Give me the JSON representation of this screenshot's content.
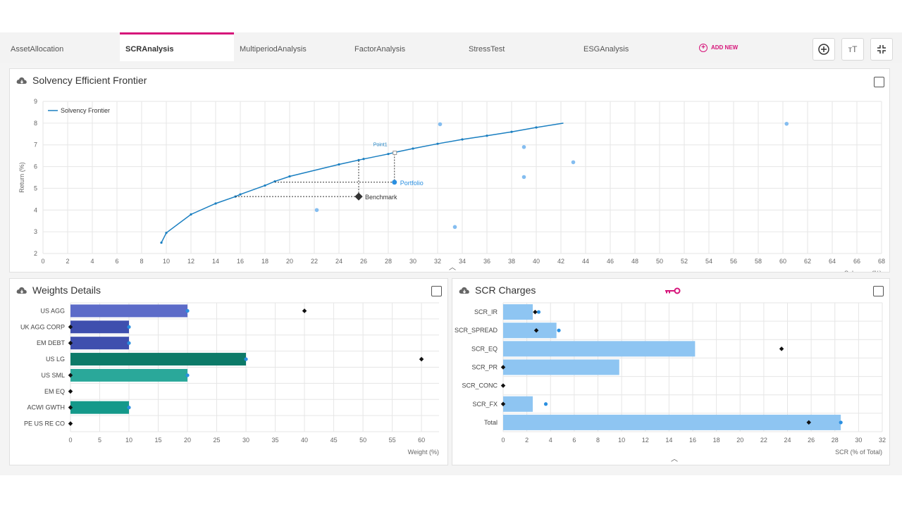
{
  "tabs": [
    {
      "label": "AssetAllocation",
      "active": false
    },
    {
      "label": "SCRAnalysis",
      "active": true
    },
    {
      "label": "MultiperiodAnalysis",
      "active": false
    },
    {
      "label": "FactorAnalysis",
      "active": false
    },
    {
      "label": "StressTest",
      "active": false
    },
    {
      "label": "ESGAnalysis",
      "active": false
    }
  ],
  "add_new": {
    "label": "ADD NEW"
  },
  "toolbar": {
    "icons": [
      "add-circle-icon",
      "text-size-icon",
      "collapse-icon"
    ],
    "text_size_glyph": "тТ"
  },
  "colors": {
    "accent": "#d6157a",
    "frontier": "#1a7fc1",
    "point": "#2a8fe0",
    "scr_bar": "#8ec5f2"
  },
  "frontier_panel": {
    "title": "Solvency Efficient Frontier",
    "legend": "Solvency Frontier",
    "portfolio_label": "Portfolio",
    "benchmark_label": "Benchmark",
    "point_label": "Point1"
  },
  "weights_panel": {
    "title": "Weights Details"
  },
  "scr_panel": {
    "title": "SCR Charges"
  },
  "chart_data": [
    {
      "type": "line",
      "title": "Solvency Efficient Frontier",
      "xlabel": "Solvency (%)",
      "ylabel": "Return (%)",
      "xlim": [
        0,
        68
      ],
      "ylim": [
        2,
        9
      ],
      "xticks": [
        0,
        2,
        4,
        6,
        8,
        10,
        12,
        14,
        16,
        18,
        20,
        22,
        24,
        26,
        28,
        30,
        32,
        34,
        36,
        38,
        40,
        42,
        44,
        46,
        48,
        50,
        52,
        54,
        56,
        58,
        60,
        62,
        64,
        66,
        68
      ],
      "yticks": [
        2,
        3,
        4,
        5,
        6,
        7,
        8,
        9
      ],
      "grid": true,
      "legend_position": "top-left",
      "series": [
        {
          "name": "Solvency Frontier",
          "x": [
            9.6,
            10,
            12,
            14,
            15.6,
            16,
            18,
            18.8,
            20,
            24,
            25.6,
            26,
            28,
            28.5,
            30,
            32,
            34,
            36,
            38,
            40,
            42.2
          ],
          "y": [
            2.5,
            2.95,
            3.8,
            4.3,
            4.62,
            4.72,
            5.13,
            5.32,
            5.55,
            6.1,
            6.3,
            6.35,
            6.58,
            6.65,
            6.83,
            7.05,
            7.25,
            7.42,
            7.6,
            7.8,
            8.0
          ]
        }
      ],
      "scatter": [
        {
          "x": 22.2,
          "y": 4.0
        },
        {
          "x": 32.2,
          "y": 7.95
        },
        {
          "x": 33.4,
          "y": 3.22
        },
        {
          "x": 39,
          "y": 6.9
        },
        {
          "x": 39,
          "y": 5.52
        },
        {
          "x": 43,
          "y": 6.2
        },
        {
          "x": 60.3,
          "y": 7.97
        }
      ],
      "portfolio": {
        "x": 28.5,
        "y": 5.28
      },
      "benchmark": {
        "x": 25.6,
        "y": 4.62
      },
      "point1": {
        "x": 28.5,
        "y": 6.65
      }
    },
    {
      "type": "bar",
      "title": "Weights Details",
      "xlabel": "Weight (%)",
      "xlim": [
        0,
        63
      ],
      "xticks": [
        0,
        5,
        10,
        15,
        20,
        25,
        30,
        35,
        40,
        45,
        50,
        55,
        60
      ],
      "categories": [
        "US AGG",
        "UK AGG CORP",
        "EM DEBT",
        "US LG",
        "US SML",
        "EM EQ",
        "ACWI GWTH",
        "PE US RE CO"
      ],
      "values": [
        20,
        10,
        10,
        30,
        20,
        0,
        10,
        0
      ],
      "benchmark": [
        40,
        0,
        0,
        60,
        0,
        0,
        0,
        0
      ],
      "bar_colors": [
        "#5c6bc8",
        "#3f4fae",
        "#3f4fae",
        "#0d7a68",
        "#2aa89a",
        "#2aa89a",
        "#14998a",
        "#14998a"
      ]
    },
    {
      "type": "bar",
      "title": "SCR Charges",
      "xlabel": "SCR (% of Total)",
      "xlim": [
        0,
        32
      ],
      "xticks": [
        0,
        2,
        4,
        6,
        8,
        10,
        12,
        14,
        16,
        18,
        20,
        22,
        24,
        26,
        28,
        30,
        32
      ],
      "categories": [
        "SCR_IR",
        "SCR_SPREAD",
        "SCR_EQ",
        "SCR_PR",
        "SCR_CONC",
        "SCR_FX",
        "Total"
      ],
      "values": [
        2.5,
        4.5,
        16.2,
        9.8,
        0,
        2.5,
        28.5
      ],
      "portfolio": [
        3.0,
        4.7,
        0,
        0,
        0,
        3.6,
        28.5
      ],
      "benchmark": [
        2.7,
        2.8,
        23.5,
        0,
        0,
        0,
        25.8
      ]
    }
  ]
}
